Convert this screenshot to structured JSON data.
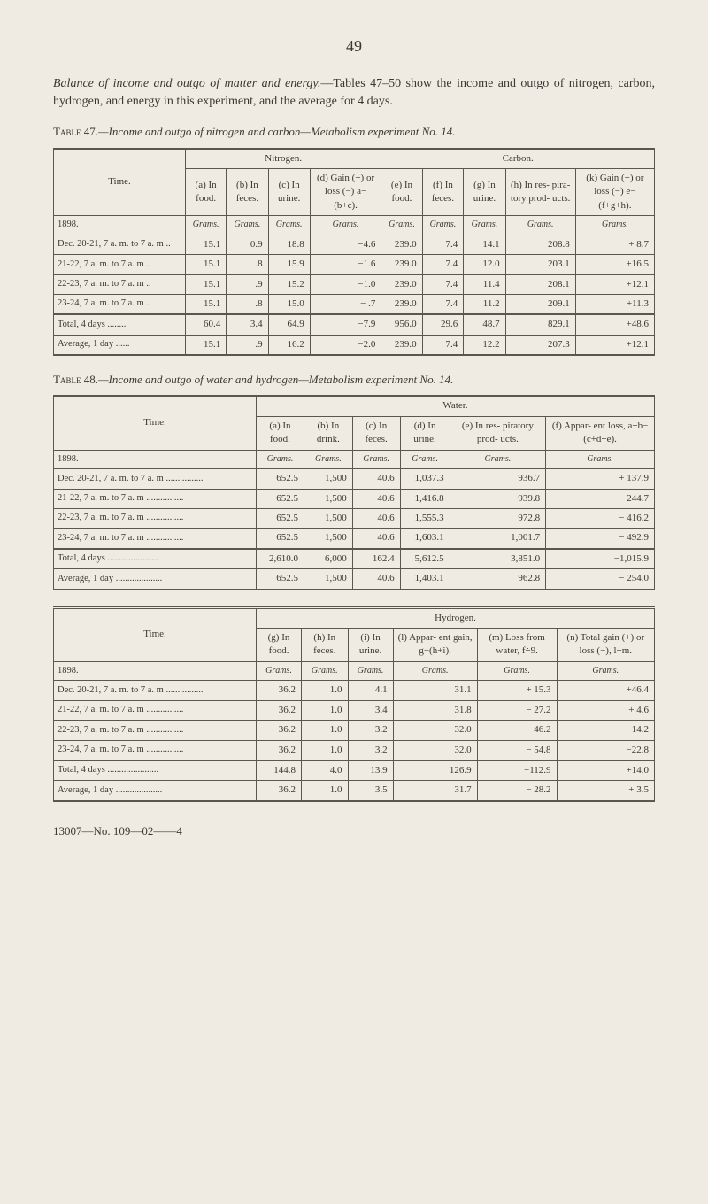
{
  "page_number": "49",
  "intro_italic": "Balance of income and outgo of matter and energy.",
  "intro_rest": "—Tables 47–50 show the income and outgo of nitrogen, carbon, hydrogen, and energy in this experiment, and the average for 4 days.",
  "footer": "13007—No. 109—02——4",
  "table47": {
    "caption_sc": "Table 47.",
    "caption_it": "—Income and outgo of nitrogen and carbon—Metabolism experiment No. 14.",
    "group1": "Nitrogen.",
    "group2": "Carbon.",
    "time_label": "Time.",
    "cols": {
      "a": "(a)\nIn food.",
      "b": "(b)\nIn feces.",
      "c": "(c)\nIn urine.",
      "d": "(d)\nGain (+) or loss (−) a−(b+c).",
      "e": "(e)\nIn food.",
      "f": "(f)\nIn feces.",
      "g": "(g)\nIn urine.",
      "h": "(h)\nIn res- pira- tory prod- ucts.",
      "k": "(k)\nGain (+) or loss (−) e−(f+g+h)."
    },
    "unit": "Grams.",
    "year": "1898.",
    "rows": [
      {
        "t": "Dec. 20-21, 7 a. m. to 7 a. m ..",
        "a": "15.1",
        "b": "0.9",
        "c": "18.8",
        "d": "−4.6",
        "e": "239.0",
        "f": "7.4",
        "g": "14.1",
        "h": "208.8",
        "k": "+ 8.7"
      },
      {
        "t": "21-22, 7 a. m. to 7 a. m ..",
        "a": "15.1",
        "b": ".8",
        "c": "15.9",
        "d": "−1.6",
        "e": "239.0",
        "f": "7.4",
        "g": "12.0",
        "h": "203.1",
        "k": "+16.5"
      },
      {
        "t": "22-23, 7 a. m. to 7 a. m ..",
        "a": "15.1",
        "b": ".9",
        "c": "15.2",
        "d": "−1.0",
        "e": "239.0",
        "f": "7.4",
        "g": "11.4",
        "h": "208.1",
        "k": "+12.1"
      },
      {
        "t": "23-24, 7 a. m. to 7 a. m ..",
        "a": "15.1",
        "b": ".8",
        "c": "15.0",
        "d": "− .7",
        "e": "239.0",
        "f": "7.4",
        "g": "11.2",
        "h": "209.1",
        "k": "+11.3"
      }
    ],
    "totals": [
      {
        "t": "Total, 4 days ........",
        "a": "60.4",
        "b": "3.4",
        "c": "64.9",
        "d": "−7.9",
        "e": "956.0",
        "f": "29.6",
        "g": "48.7",
        "h": "829.1",
        "k": "+48.6"
      },
      {
        "t": "Average, 1 day ......",
        "a": "15.1",
        "b": ".9",
        "c": "16.2",
        "d": "−2.0",
        "e": "239.0",
        "f": "7.4",
        "g": "12.2",
        "h": "207.3",
        "k": "+12.1"
      }
    ]
  },
  "table48": {
    "caption_sc": "Table 48.",
    "caption_it": "—Income and outgo of water and hydrogen—Metabolism experiment No. 14.",
    "water_label": "Water.",
    "hydrogen_label": "Hydrogen.",
    "time_label": "Time.",
    "water_cols": {
      "a": "(a)\nIn food.",
      "b": "(b)\nIn drink.",
      "c": "(c)\nIn feces.",
      "d": "(d)\nIn urine.",
      "e": "(e)\nIn res- piratory prod- ucts.",
      "f": "(f)\nAppar- ent loss, a+b− (c+d+e)."
    },
    "unit": "Grams.",
    "year": "1898.",
    "water_rows": [
      {
        "t": "Dec. 20-21, 7 a. m. to 7 a. m ................",
        "a": "652.5",
        "b": "1,500",
        "c": "40.6",
        "d": "1,037.3",
        "e": "936.7",
        "f": "+ 137.9"
      },
      {
        "t": "21-22, 7 a. m. to 7 a. m ................",
        "a": "652.5",
        "b": "1,500",
        "c": "40.6",
        "d": "1,416.8",
        "e": "939.8",
        "f": "− 244.7"
      },
      {
        "t": "22-23, 7 a. m. to 7 a. m ................",
        "a": "652.5",
        "b": "1,500",
        "c": "40.6",
        "d": "1,555.3",
        "e": "972.8",
        "f": "− 416.2"
      },
      {
        "t": "23-24, 7 a. m. to 7 a. m ................",
        "a": "652.5",
        "b": "1,500",
        "c": "40.6",
        "d": "1,603.1",
        "e": "1,001.7",
        "f": "− 492.9"
      }
    ],
    "water_totals": [
      {
        "t": "Total, 4 days ......................",
        "a": "2,610.0",
        "b": "6,000",
        "c": "162.4",
        "d": "5,612.5",
        "e": "3,851.0",
        "f": "−1,015.9"
      },
      {
        "t": "Average, 1 day ....................",
        "a": "652.5",
        "b": "1,500",
        "c": "40.6",
        "d": "1,403.1",
        "e": "962.8",
        "f": "− 254.0"
      }
    ],
    "hyd_cols": {
      "g": "(g)\nIn food.",
      "h": "(h)\nIn feces.",
      "i": "(i)\nIn urine.",
      "l": "(l)\nAppar- ent gain, g−(h+i).",
      "m": "(m)\nLoss from water, f÷9.",
      "n": "(n)\nTotal gain (+) or loss (−), l+m."
    },
    "hyd_rows": [
      {
        "t": "Dec. 20-21, 7 a. m. to 7 a. m ................",
        "g": "36.2",
        "h": "1.0",
        "i": "4.1",
        "l": "31.1",
        "m": "+ 15.3",
        "n": "+46.4"
      },
      {
        "t": "21-22, 7 a. m. to 7 a. m ................",
        "g": "36.2",
        "h": "1.0",
        "i": "3.4",
        "l": "31.8",
        "m": "− 27.2",
        "n": "+ 4.6"
      },
      {
        "t": "22-23, 7 a. m. to 7 a. m ................",
        "g": "36.2",
        "h": "1.0",
        "i": "3.2",
        "l": "32.0",
        "m": "− 46.2",
        "n": "−14.2"
      },
      {
        "t": "23-24, 7 a. m. to 7 a. m ................",
        "g": "36.2",
        "h": "1.0",
        "i": "3.2",
        "l": "32.0",
        "m": "− 54.8",
        "n": "−22.8"
      }
    ],
    "hyd_totals": [
      {
        "t": "Total, 4 days ......................",
        "g": "144.8",
        "h": "4.0",
        "i": "13.9",
        "l": "126.9",
        "m": "−112.9",
        "n": "+14.0"
      },
      {
        "t": "Average, 1 day ....................",
        "g": "36.2",
        "h": "1.0",
        "i": "3.5",
        "l": "31.7",
        "m": "− 28.2",
        "n": "+ 3.5"
      }
    ]
  }
}
